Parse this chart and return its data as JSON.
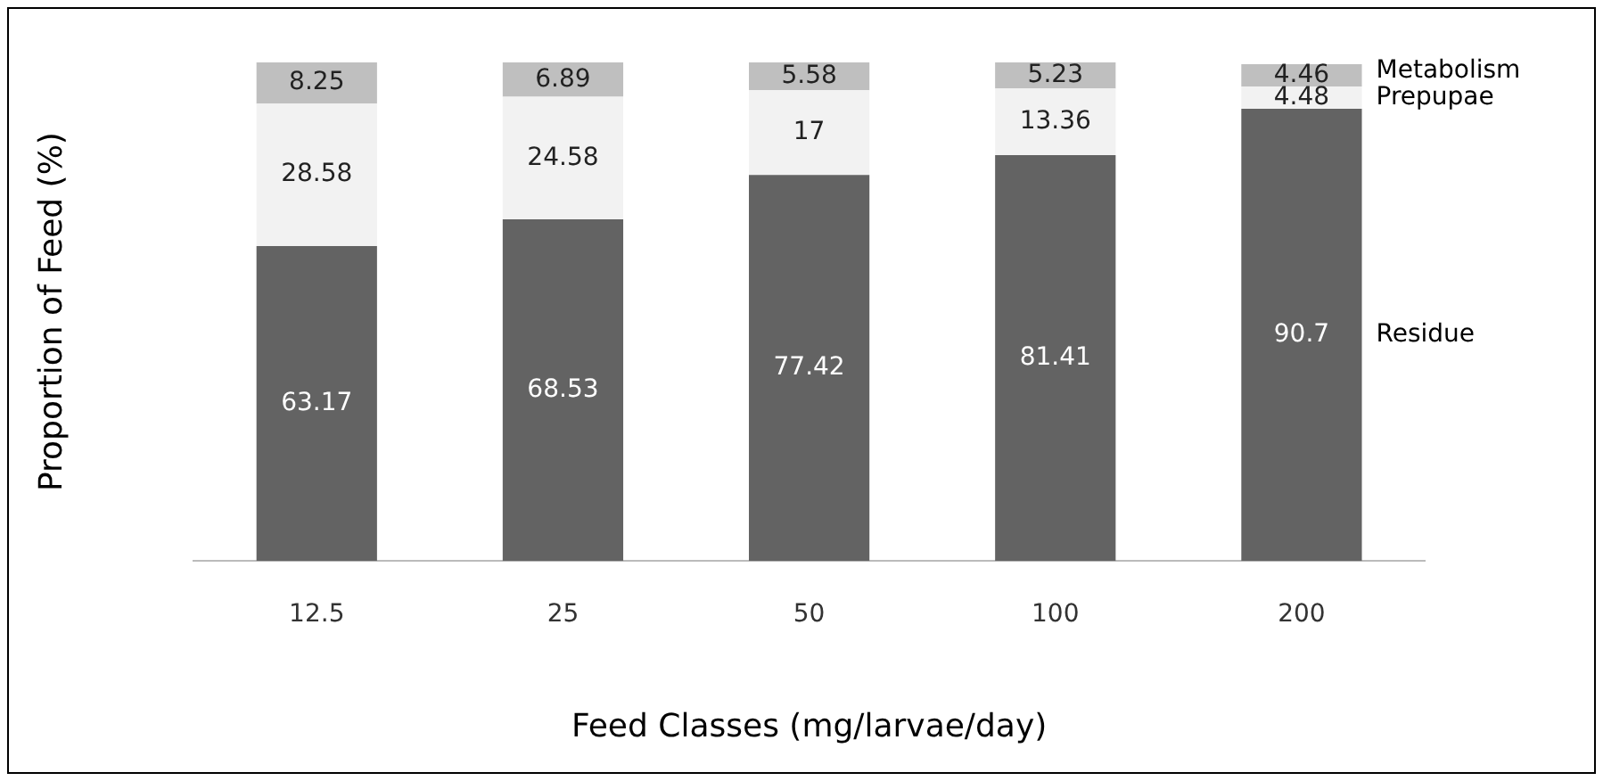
{
  "chart_data": {
    "type": "bar",
    "stacked": true,
    "xlabel": "Feed Classes (mg/larvae/day)",
    "ylabel": "Proportion of Feed (%)",
    "categories": [
      "12.5",
      "25",
      "50",
      "100",
      "200"
    ],
    "series": [
      {
        "name": "Residue",
        "color": "#636363",
        "values": [
          63.17,
          68.53,
          77.42,
          81.41,
          90.7
        ]
      },
      {
        "name": "Prepupae",
        "color": "#f2f2f2",
        "values": [
          28.58,
          24.58,
          17,
          13.36,
          4.48
        ]
      },
      {
        "name": "Metabolism",
        "color": "#bfbfbf",
        "values": [
          8.25,
          6.89,
          5.58,
          5.23,
          4.46
        ]
      }
    ],
    "data_labels": true,
    "legend": false,
    "grid": false
  }
}
